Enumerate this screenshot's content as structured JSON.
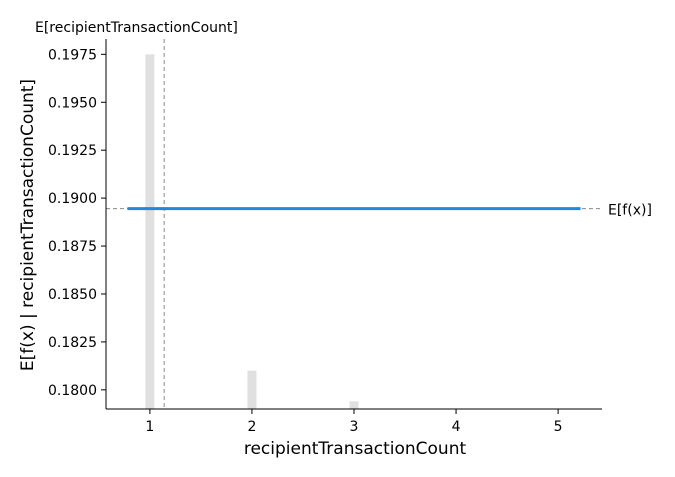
{
  "chart_data": {
    "type": "line",
    "title": "",
    "xlabel": "recipientTransactionCount",
    "ylabel": "E[f(x) | recipientTransactionCount]",
    "xlim": [
      0.57,
      5.43
    ],
    "ylim": [
      0.179,
      0.1983
    ],
    "x_ticks": [
      "1",
      "2",
      "3",
      "4",
      "5"
    ],
    "x_tick_values": [
      1,
      2,
      3,
      4,
      5
    ],
    "y_ticks": [
      "0.1800",
      "0.1825",
      "0.1850",
      "0.1875",
      "0.1900",
      "0.1925",
      "0.1950",
      "0.1975"
    ],
    "y_tick_values": [
      0.18,
      0.1825,
      0.185,
      0.1875,
      0.19,
      0.1925,
      0.195,
      0.1975
    ],
    "series": [
      {
        "x": [
          0.78,
          5.22
        ],
        "y": [
          0.18945,
          0.18945
        ],
        "color": "#1e88e5"
      }
    ],
    "histogram": {
      "x": [
        1,
        2,
        3
      ],
      "heights": [
        0.1975,
        0.181,
        0.1794
      ],
      "color": "#e0e0e0"
    },
    "expected_value_lines": {
      "x_mean": 1.14,
      "x_mean_label": "E[recipientTransactionCount]",
      "y_mean": 0.18945,
      "y_mean_label": "E[f(x)]",
      "color": "#888888"
    },
    "grid": false,
    "legend": "none"
  }
}
